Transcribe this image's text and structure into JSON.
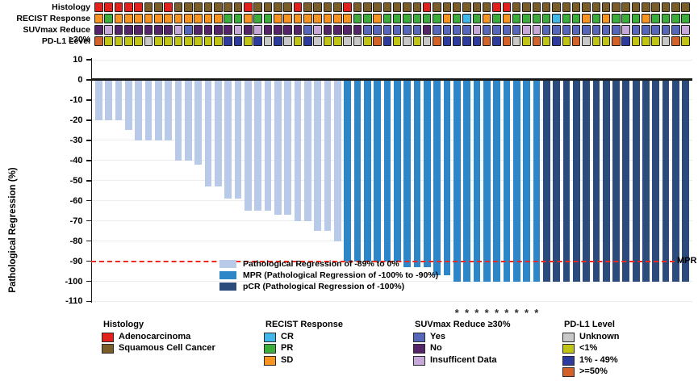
{
  "chart_data": {
    "type": "bar",
    "title": "",
    "xlabel": "",
    "ylabel": "Pathological Regression (%)",
    "ylim": [
      -110,
      10
    ],
    "yticks": [
      10,
      0,
      -10,
      -20,
      -30,
      -40,
      -50,
      -60,
      -70,
      -80,
      -90,
      -100,
      -110
    ],
    "grid": "faint horizontal",
    "values": [
      -20,
      -20,
      -20,
      -25,
      -30,
      -30,
      -30,
      -30,
      -40,
      -40,
      -42,
      -53,
      -53,
      -59,
      -59,
      -65,
      -65,
      -65,
      -67,
      -67,
      -70,
      -70,
      -75,
      -75,
      -80,
      -90,
      -90,
      -90,
      -90,
      -90,
      -90,
      -93,
      -93,
      -93,
      -97,
      -97,
      -100,
      -100,
      -100,
      -100,
      -100,
      -100,
      -100,
      -100,
      -100,
      -100,
      -100,
      -100,
      -100,
      -100,
      -100,
      -100,
      -100,
      -100,
      -100,
      -100,
      -100,
      -100,
      -100,
      -100
    ],
    "bar_groups": [
      "L",
      "L",
      "L",
      "L",
      "L",
      "L",
      "L",
      "L",
      "L",
      "L",
      "L",
      "L",
      "L",
      "L",
      "L",
      "L",
      "L",
      "L",
      "L",
      "L",
      "L",
      "L",
      "L",
      "L",
      "L",
      "M",
      "M",
      "M",
      "M",
      "M",
      "M",
      "M",
      "M",
      "M",
      "M",
      "M",
      "M",
      "M",
      "M",
      "M",
      "M",
      "M",
      "M",
      "M",
      "M",
      "D",
      "D",
      "D",
      "D",
      "D",
      "D",
      "D",
      "D",
      "D",
      "D",
      "D",
      "D",
      "D",
      "D",
      "D"
    ],
    "group_colors": {
      "L": "#b9c9e8",
      "M": "#2c86c8",
      "D": "#2b4b7c"
    },
    "reference_line": {
      "value": -90,
      "label": "MPR",
      "style": "dashed",
      "color": "#f2281e"
    },
    "asterisk_columns": [
      37,
      38,
      39,
      40,
      41,
      42,
      43,
      44,
      45
    ],
    "asterisk_glyph": "*"
  },
  "axis": {
    "ylabel": "Pathological Regression (%)",
    "mpr_label": "MPR"
  },
  "tracks": [
    {
      "id": "histology",
      "label": "Histology",
      "palette": {
        "A": "#e3201b",
        "S": "#7b5d2a"
      },
      "legend": {
        "A": "Adenocarcinoma",
        "S": "Squamous Cell Cancer"
      },
      "codes": [
        "A",
        "A",
        "A",
        "A",
        "A",
        "S",
        "S",
        "A",
        "S",
        "S",
        "S",
        "S",
        "S",
        "S",
        "S",
        "A",
        "S",
        "S",
        "S",
        "S",
        "A",
        "S",
        "S",
        "S",
        "S",
        "A",
        "S",
        "S",
        "S",
        "S",
        "S",
        "S",
        "S",
        "A",
        "S",
        "S",
        "S",
        "S",
        "S",
        "S",
        "A",
        "A",
        "S",
        "S",
        "S",
        "S",
        "S",
        "S",
        "S",
        "S",
        "S",
        "S",
        "S",
        "S",
        "S",
        "S",
        "S",
        "S",
        "S",
        "S"
      ]
    },
    {
      "id": "recist",
      "label": "RECIST Response",
      "palette": {
        "CR": "#41b7e9",
        "PR": "#3cad3c",
        "SD": "#f79320"
      },
      "legend": {
        "CR": "CR",
        "PR": "PR",
        "SD": "SD"
      },
      "codes": [
        "SD",
        "PR",
        "SD",
        "SD",
        "SD",
        "SD",
        "SD",
        "SD",
        "SD",
        "SD",
        "SD",
        "SD",
        "SD",
        "PR",
        "PR",
        "SD",
        "PR",
        "PR",
        "SD",
        "SD",
        "SD",
        "SD",
        "SD",
        "SD",
        "SD",
        "SD",
        "PR",
        "PR",
        "SD",
        "PR",
        "PR",
        "PR",
        "PR",
        "PR",
        "PR",
        "SD",
        "PR",
        "CR",
        "PR",
        "SD",
        "PR",
        "SD",
        "PR",
        "PR",
        "PR",
        "PR",
        "CR",
        "PR",
        "PR",
        "SD",
        "PR",
        "SD",
        "PR",
        "PR",
        "PR",
        "SD",
        "PR",
        "PR",
        "PR",
        "PR"
      ]
    },
    {
      "id": "suvmax",
      "label": "SUVmax Reduce ≥30%",
      "palette": {
        "Y": "#5566bb",
        "N": "#552368",
        "I": "#c7a9d9"
      },
      "legend": {
        "Y": "Yes",
        "N": "No",
        "I": "Insufficent Data"
      },
      "codes": [
        "N",
        "I",
        "N",
        "N",
        "N",
        "N",
        "N",
        "N",
        "I",
        "Y",
        "N",
        "N",
        "N",
        "N",
        "I",
        "N",
        "I",
        "N",
        "N",
        "N",
        "N",
        "Y",
        "I",
        "N",
        "N",
        "N",
        "N",
        "Y",
        "Y",
        "Y",
        "Y",
        "Y",
        "Y",
        "N",
        "Y",
        "Y",
        "Y",
        "Y",
        "I",
        "Y",
        "Y",
        "Y",
        "Y",
        "I",
        "I",
        "Y",
        "Y",
        "Y",
        "Y",
        "Y",
        "Y",
        "Y",
        "Y",
        "I",
        "Y",
        "Y",
        "Y",
        "Y",
        "Y",
        "I"
      ]
    },
    {
      "id": "pdl1",
      "label": "PD-L1 Level",
      "palette": {
        "U": "#c8c8c8",
        "L": "#c0c414",
        "M": "#2d3a9e",
        "H": "#d2622a"
      },
      "legend": {
        "U": "Unknown",
        "L": "<1%",
        "M": "1% - 49%",
        "H": ">=50%"
      },
      "codes": [
        "H",
        "L",
        "L",
        "L",
        "L",
        "U",
        "L",
        "L",
        "L",
        "L",
        "L",
        "L",
        "L",
        "M",
        "M",
        "L",
        "M",
        "U",
        "M",
        "U",
        "L",
        "M",
        "U",
        "L",
        "L",
        "U",
        "U",
        "L",
        "H",
        "M",
        "L",
        "U",
        "L",
        "U",
        "H",
        "M",
        "M",
        "M",
        "M",
        "H",
        "M",
        "H",
        "U",
        "L",
        "H",
        "L",
        "M",
        "L",
        "H",
        "U",
        "L",
        "L",
        "H",
        "M",
        "L",
        "L",
        "L",
        "U",
        "H",
        "L"
      ]
    }
  ],
  "bar_legend": [
    {
      "label": "Pathological Regression of -89% to 0%",
      "color": "#b9c9e8"
    },
    {
      "label": "MPR (Pathological Regression of -100% to -90%)",
      "color": "#2c86c8"
    },
    {
      "label": "pCR (Pathological Regression of -100%)",
      "color": "#2b4b7c"
    }
  ],
  "legend_groups": [
    {
      "title": "Histology",
      "items": [
        {
          "label": "Adenocarcinoma",
          "color": "#e3201b"
        },
        {
          "label": "Squamous Cell Cancer",
          "color": "#7b5d2a"
        }
      ]
    },
    {
      "title": "RECIST Response",
      "items": [
        {
          "label": "CR",
          "color": "#41b7e9"
        },
        {
          "label": "PR",
          "color": "#3cad3c"
        },
        {
          "label": "SD",
          "color": "#f79320"
        }
      ]
    },
    {
      "title": "SUVmax Reduce ≥30%",
      "items": [
        {
          "label": "Yes",
          "color": "#5566bb"
        },
        {
          "label": "No",
          "color": "#552368"
        },
        {
          "label": "Insufficent Data",
          "color": "#c7a9d9"
        }
      ]
    },
    {
      "title": "PD-L1 Level",
      "items": [
        {
          "label": "Unknown",
          "color": "#c8c8c8"
        },
        {
          "label": "<1%",
          "color": "#c0c414"
        },
        {
          "label": "1% - 49%",
          "color": "#2d3a9e"
        },
        {
          "label": ">=50%",
          "color": "#d2622a"
        }
      ]
    }
  ]
}
